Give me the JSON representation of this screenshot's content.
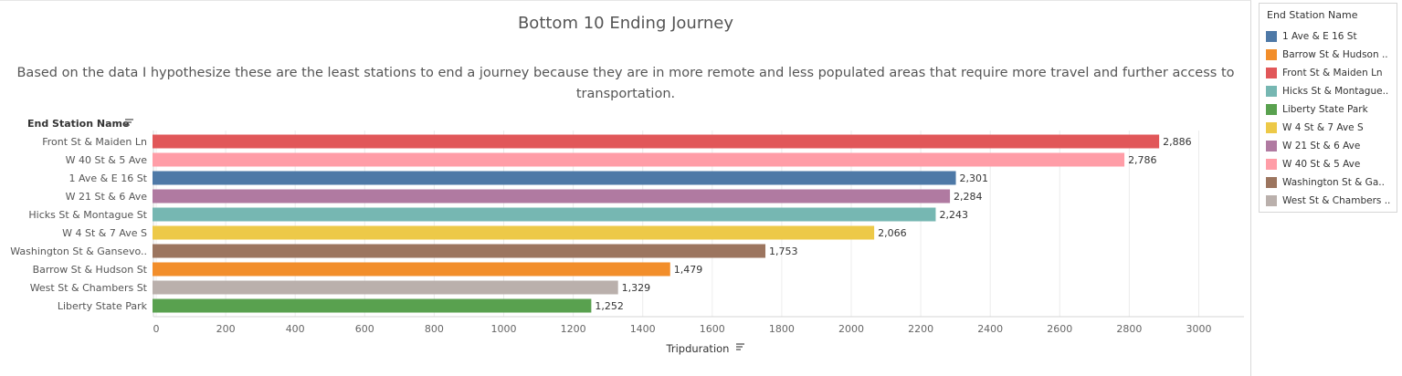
{
  "title": "Bottom 10 Ending Journey",
  "subtitle": "Based on the data I hypothesize these are the least stations to end a journey because they are in more remote and less populated areas that require more travel and further access to transportation.",
  "legend": {
    "title": "End Station Name",
    "items": [
      {
        "label": "1 Ave & E 16 St",
        "color": "#4e79a7"
      },
      {
        "label": "Barrow St & Hudson ..",
        "color": "#f28e2b"
      },
      {
        "label": "Front St & Maiden Ln",
        "color": "#e15759"
      },
      {
        "label": "Hicks St & Montague..",
        "color": "#76b7b2"
      },
      {
        "label": "Liberty State Park",
        "color": "#59a14f"
      },
      {
        "label": "W 4 St & 7 Ave S",
        "color": "#edc948"
      },
      {
        "label": "W 21 St & 6 Ave",
        "color": "#b07aa1"
      },
      {
        "label": "W 40 St & 5 Ave",
        "color": "#ff9da7"
      },
      {
        "label": "Washington St & Ga..",
        "color": "#9c755f"
      },
      {
        "label": "West St & Chambers ..",
        "color": "#bab0ac"
      }
    ]
  },
  "chart_data": {
    "type": "bar",
    "orientation": "horizontal",
    "ylabel": "End Station Name",
    "xlabel": "Tripduration",
    "xlim": [
      0,
      3000
    ],
    "xticks": [
      0,
      200,
      400,
      600,
      800,
      1000,
      1200,
      1400,
      1600,
      1800,
      2000,
      2200,
      2400,
      2600,
      2800,
      3000
    ],
    "grid": true,
    "categories": [
      "Front St & Maiden Ln",
      "W 40 St & 5 Ave",
      "1 Ave & E 16 St",
      "W 21 St & 6 Ave",
      "Hicks St & Montague St",
      "W 4 St & 7 Ave S",
      "Washington St & Gansevo..",
      "Barrow St & Hudson St",
      "West St & Chambers St",
      "Liberty State Park"
    ],
    "values": [
      2886,
      2786,
      2301,
      2284,
      2243,
      2066,
      1753,
      1479,
      1329,
      1252
    ],
    "value_labels": [
      "2,886",
      "2,786",
      "2,301",
      "2,284",
      "2,243",
      "2,066",
      "1,753",
      "1,479",
      "1,329",
      "1,252"
    ],
    "colors": [
      "#e15759",
      "#ff9da7",
      "#4e79a7",
      "#b07aa1",
      "#76b7b2",
      "#edc948",
      "#9c755f",
      "#f28e2b",
      "#bab0ac",
      "#59a14f"
    ]
  }
}
